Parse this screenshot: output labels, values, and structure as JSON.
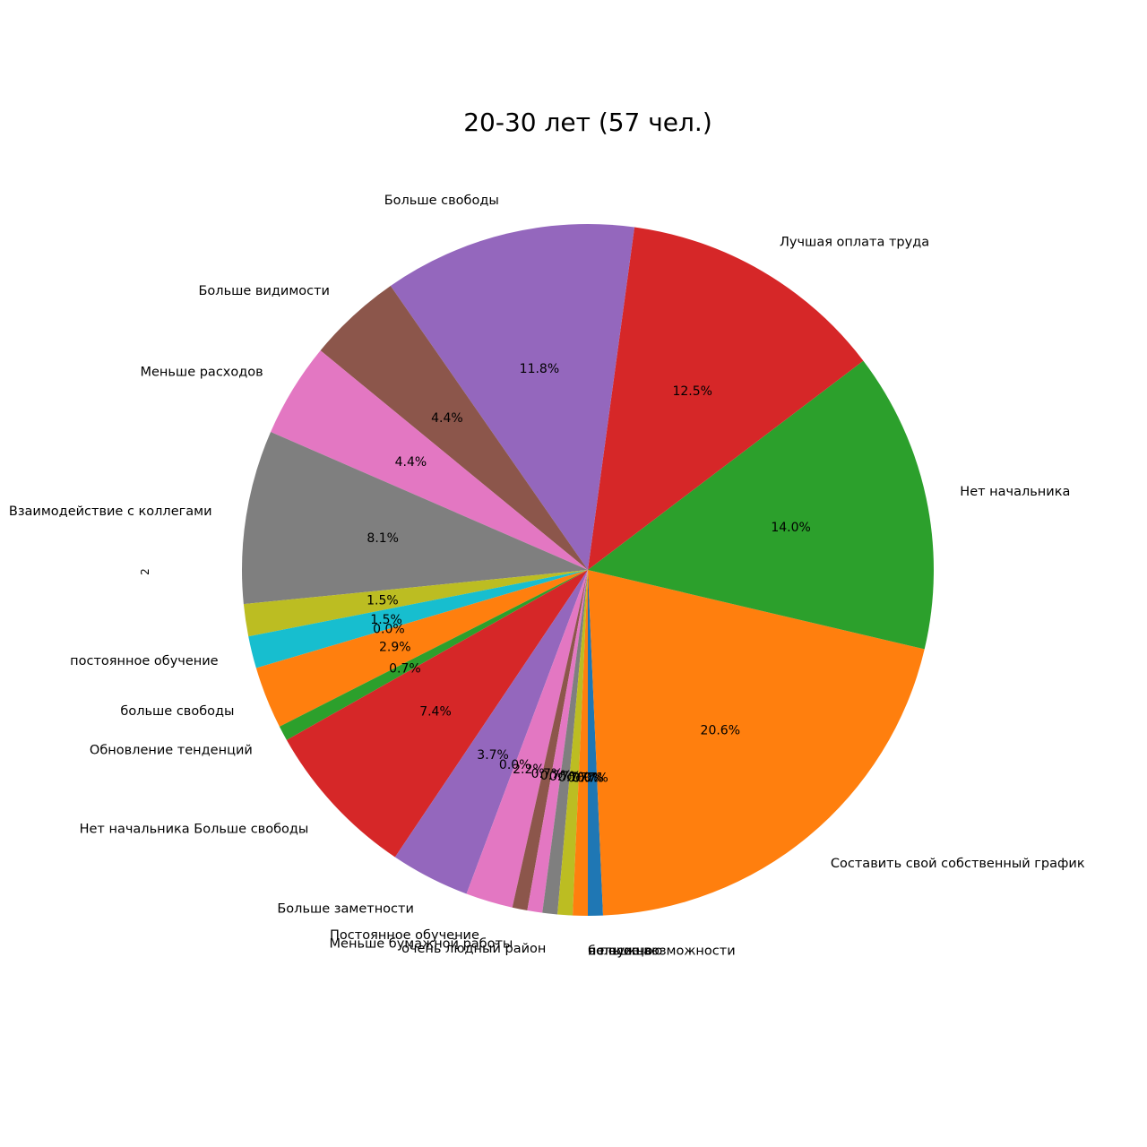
{
  "chart_data": {
    "type": "pie",
    "title": "20-30 лет (57 чел.)",
    "ylabel": "2",
    "start_angle_deg": -90,
    "direction": "counterclockwise",
    "slices": [
      {
        "label": "",
        "value": 0.7,
        "pct": "0.7%",
        "color": "#1f77b4"
      },
      {
        "label": "Составить свой собственный график",
        "value": 20.6,
        "pct": "20.6%",
        "color": "#ff7f0e"
      },
      {
        "label": "Нет начальника",
        "value": 14.0,
        "pct": "14.0%",
        "color": "#2ca02c"
      },
      {
        "label": "Лучшая оплата труда",
        "value": 12.5,
        "pct": "12.5%",
        "color": "#d62728"
      },
      {
        "label": "Больше свободы",
        "value": 11.8,
        "pct": "11.8%",
        "color": "#9467bd"
      },
      {
        "label": "Больше видимости",
        "value": 4.4,
        "pct": "4.4%",
        "color": "#8c564b"
      },
      {
        "label": "Меньше расходов",
        "value": 4.4,
        "pct": "4.4%",
        "color": "#e377c2"
      },
      {
        "label": "Взаимодействие с коллегами",
        "value": 8.1,
        "pct": "8.1%",
        "color": "#7f7f7f"
      },
      {
        "label": "",
        "value": 1.5,
        "pct": "1.5%",
        "color": "#bcbd22"
      },
      {
        "label": "постоянное обучение",
        "value": 1.5,
        "pct": "1.5%",
        "color": "#17becf"
      },
      {
        "label": "",
        "value": 0.0,
        "pct": "0.0%",
        "color": "#1f77b4"
      },
      {
        "label": "больше свободы",
        "value": 2.9,
        "pct": "2.9%",
        "color": "#ff7f0e"
      },
      {
        "label": "Обновление тенденций",
        "value": 0.7,
        "pct": "0.7%",
        "color": "#2ca02c"
      },
      {
        "label": "Нет начальника Больше свободы",
        "value": 7.4,
        "pct": "7.4%",
        "color": "#d62728"
      },
      {
        "label": "Больше заметности",
        "value": 3.7,
        "pct": "3.7%",
        "color": "#9467bd"
      },
      {
        "label": "",
        "value": 0.0,
        "pct": "0.0%",
        "color": "#8c564b"
      },
      {
        "label": "Постоянное обучение",
        "value": 2.2,
        "pct": "2.2%",
        "color": "#e377c2"
      },
      {
        "label": "Меньше бумажной работы",
        "value": 0.7,
        "pct": "0.7%",
        "color": "#8c564b"
      },
      {
        "label": "",
        "value": 0.7,
        "pct": "0.7%",
        "color": "#e377c2"
      },
      {
        "label": "очень людный район",
        "value": 0.7,
        "pct": "0.7%",
        "color": "#7f7f7f"
      },
      {
        "label": "",
        "value": 0.7,
        "pct": "0.7%",
        "color": "#bcbd22"
      },
      {
        "label": "",
        "value": 0.7,
        "pct": "0.7%",
        "color": "#ff7f0e"
      },
      {
        "label": "не нужно",
        "value": 0.0,
        "pct": "0.0%",
        "color": "#2ca02c"
      },
      {
        "label": "я посещаю",
        "value": 0.0,
        "pct": "0.0%",
        "color": "#9467bd"
      },
      {
        "label": "больше возможности",
        "value": 0.0,
        "pct": "0.0%",
        "color": "#17becf"
      }
    ]
  }
}
